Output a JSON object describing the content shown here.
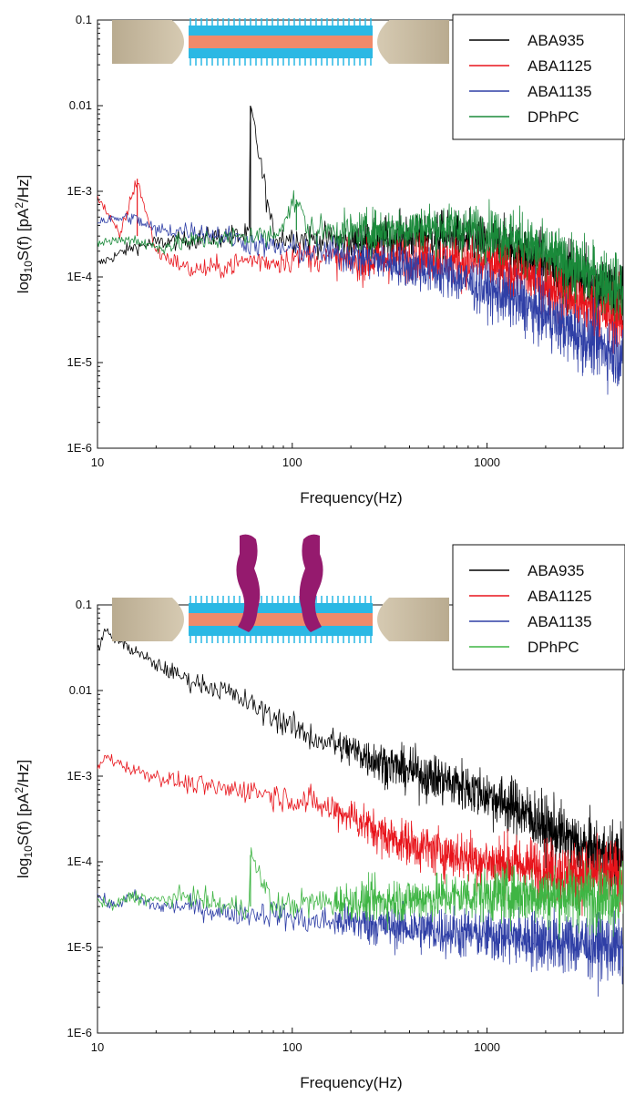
{
  "chart_data": [
    {
      "type": "line",
      "title": "",
      "xlabel": "Frequency(Hz)",
      "ylabel_parts": [
        "log",
        "10",
        "S(f) [pA",
        "2",
        "/Hz]"
      ],
      "xscale": "log",
      "yscale": "log",
      "xlim": [
        10,
        5000
      ],
      "ylim": [
        1e-06,
        0.1
      ],
      "x_ticks": [
        10,
        100,
        1000
      ],
      "x_tick_labels": [
        "10",
        "100",
        "1000"
      ],
      "y_ticks": [
        0.1,
        0.01,
        0.001,
        0.0001,
        1e-05,
        1e-06
      ],
      "y_tick_labels": [
        "0.1",
        "0.01",
        "1E-3",
        "1E-4",
        "1E-5",
        "1E-6"
      ],
      "legend_position": "top-right",
      "inset_icon": "lipid-bilayer-membrane-icon",
      "series": [
        {
          "name": "ABA935",
          "color": "#000000",
          "x": [
            10,
            15,
            20,
            30,
            45,
            60,
            61,
            80,
            120,
            200,
            300,
            500,
            700,
            1000,
            1500,
            2000,
            3000,
            5000
          ],
          "y": [
            0.00014,
            0.00022,
            0.00025,
            0.00027,
            0.0003,
            0.0003,
            0.01,
            0.0003,
            0.00028,
            0.00025,
            0.00028,
            0.0003,
            0.00028,
            0.00024,
            0.00019,
            0.00014,
            0.0001,
            6e-05
          ]
        },
        {
          "name": "ABA1125",
          "color": "#e8141b",
          "x": [
            10,
            13,
            16,
            20,
            30,
            45,
            60,
            80,
            120,
            200,
            300,
            500,
            700,
            1000,
            1500,
            2000,
            3000,
            5000
          ],
          "y": [
            0.0009,
            0.0003,
            0.0014,
            0.0002,
            0.00012,
            0.00013,
            0.00016,
            0.00015,
            0.00018,
            0.00015,
            0.00016,
            0.00017,
            0.00015,
            0.00014,
            0.00011,
            8e-05,
            5e-05,
            3e-05
          ]
        },
        {
          "name": "ABA1135",
          "color": "#2f3fa6",
          "x": [
            10,
            15,
            20,
            30,
            45,
            60,
            80,
            120,
            200,
            300,
            500,
            700,
            1000,
            1500,
            2000,
            3000,
            5000
          ],
          "y": [
            0.00045,
            0.0005,
            0.00035,
            0.00035,
            0.0003,
            0.00025,
            0.00022,
            0.0002,
            0.00018,
            0.00015,
            0.00012,
            0.0001,
            7e-05,
            5e-05,
            3.5e-05,
            2e-05,
            1.2e-05
          ]
        },
        {
          "name": "DPhPC",
          "color": "#1a8a3a",
          "x": [
            10,
            15,
            20,
            30,
            45,
            60,
            80,
            105,
            120,
            200,
            300,
            500,
            700,
            1000,
            1500,
            2000,
            3000,
            5000
          ],
          "y": [
            0.00025,
            0.00028,
            0.00022,
            0.00026,
            0.00028,
            0.0003,
            0.0003,
            0.0008,
            0.00035,
            0.00033,
            0.00035,
            0.00038,
            0.00037,
            0.00033,
            0.00026,
            0.00018,
            0.00012,
            7e-05
          ]
        }
      ]
    },
    {
      "type": "line",
      "title": "",
      "xlabel": "Frequency(Hz)",
      "ylabel_parts": [
        "log",
        "10",
        "S(f) [pA",
        "2",
        "/Hz]"
      ],
      "xscale": "log",
      "yscale": "log",
      "xlim": [
        10,
        5000
      ],
      "ylim": [
        1e-06,
        0.1
      ],
      "x_ticks": [
        10,
        100,
        1000
      ],
      "x_tick_labels": [
        "10",
        "100",
        "1000"
      ],
      "y_ticks": [
        0.1,
        0.01,
        0.001,
        0.0001,
        1e-05,
        1e-06
      ],
      "y_tick_labels": [
        "0.1",
        "0.01",
        "1E-3",
        "1E-4",
        "1E-5",
        "1E-6"
      ],
      "legend_position": "top-right",
      "inset_icon": "membrane-with-channel-icon",
      "series": [
        {
          "name": "ABA935",
          "color": "#000000",
          "x": [
            10,
            11,
            15,
            20,
            30,
            45,
            60,
            80,
            120,
            200,
            300,
            500,
            700,
            1000,
            1500,
            2000,
            3000,
            5000
          ],
          "y": [
            0.03,
            0.05,
            0.03,
            0.02,
            0.013,
            0.01,
            0.007,
            0.005,
            0.003,
            0.002,
            0.0014,
            0.001,
            0.0008,
            0.0006,
            0.0004,
            0.00025,
            0.00015,
            0.0001
          ]
        },
        {
          "name": "ABA1125",
          "color": "#e8141b",
          "x": [
            10,
            11,
            15,
            20,
            30,
            45,
            60,
            80,
            120,
            200,
            300,
            500,
            700,
            1000,
            1500,
            2000,
            3000,
            5000
          ],
          "y": [
            0.0012,
            0.0017,
            0.0012,
            0.001,
            0.0008,
            0.0007,
            0.0007,
            0.0006,
            0.0005,
            0.00035,
            0.0002,
            0.00014,
            0.00012,
            0.0001,
            9e-05,
            8e-05,
            7e-05,
            7e-05
          ]
        },
        {
          "name": "ABA1135",
          "color": "#2f3fa6",
          "x": [
            10,
            12,
            15,
            20,
            30,
            45,
            60,
            80,
            120,
            200,
            300,
            500,
            700,
            1000,
            1500,
            2000,
            3000,
            5000
          ],
          "y": [
            4e-05,
            3e-05,
            4e-05,
            3e-05,
            3e-05,
            2.5e-05,
            2.5e-05,
            2.5e-05,
            2e-05,
            2e-05,
            1.8e-05,
            1.6e-05,
            1.5e-05,
            1.4e-05,
            1.3e-05,
            1.2e-05,
            1.1e-05,
            1e-05
          ]
        },
        {
          "name": "DPhPC",
          "color": "#3fb544",
          "x": [
            10,
            12,
            15,
            20,
            30,
            45,
            60,
            61,
            80,
            120,
            200,
            300,
            500,
            700,
            1000,
            1500,
            2000,
            3000,
            5000
          ],
          "y": [
            3.5e-05,
            3e-05,
            4e-05,
            3.5e-05,
            4e-05,
            3e-05,
            3e-05,
            0.00012,
            3e-05,
            3.3e-05,
            3.5e-05,
            3.5e-05,
            3.8e-05,
            4e-05,
            4.2e-05,
            4.2e-05,
            4e-05,
            4e-05,
            4e-05
          ]
        }
      ]
    }
  ]
}
